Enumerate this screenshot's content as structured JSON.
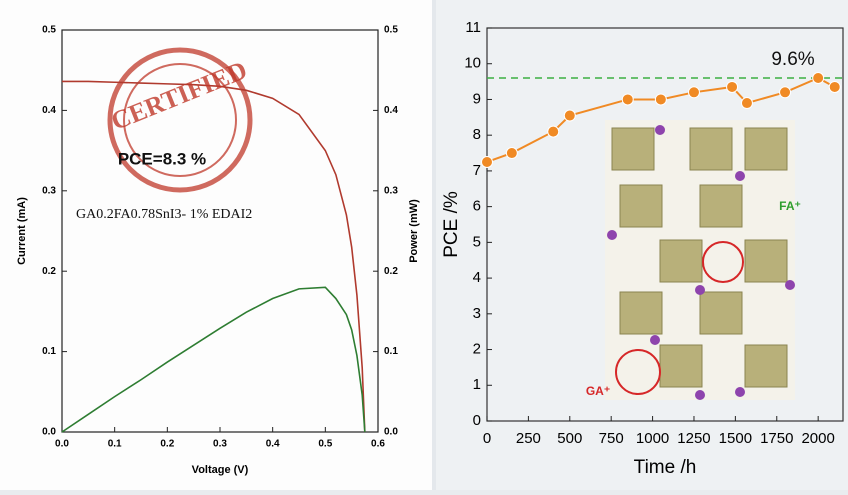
{
  "chart_data": [
    {
      "type": "line",
      "x_label": "Voltage (V)",
      "y_label": "Current (mA)",
      "y2_label": "Power (mW)",
      "annotations": [
        "CERTIFIED",
        "PCE=8.3 %",
        "GA0.2FA0.78SnI3- 1% EDAI2"
      ],
      "x": [
        0,
        0.05,
        0.1,
        0.15,
        0.2,
        0.25,
        0.3,
        0.35,
        0.4,
        0.45,
        0.5,
        0.52,
        0.54,
        0.55,
        0.56,
        0.57,
        0.575
      ],
      "series": [
        {
          "color": "#b03a2e",
          "values": [
            0.436,
            0.436,
            0.435,
            0.434,
            0.433,
            0.432,
            0.43,
            0.425,
            0.415,
            0.395,
            0.35,
            0.32,
            0.27,
            0.23,
            0.17,
            0.08,
            0
          ]
        },
        {
          "color": "#2e7d32",
          "axis": "y2",
          "values": [
            0,
            0.022,
            0.044,
            0.065,
            0.087,
            0.108,
            0.129,
            0.149,
            0.166,
            0.178,
            0.18,
            0.166,
            0.146,
            0.127,
            0.095,
            0.046,
            0
          ]
        }
      ],
      "xlim": [
        0,
        0.6
      ],
      "xticks": [
        {
          "value": 0,
          "label": "0.0"
        },
        0.1,
        0.2,
        0.3,
        0.4,
        0.5,
        0.6
      ],
      "ylim": [
        0,
        0.5
      ],
      "yticks": [
        {
          "value": 0,
          "label": "0.0"
        },
        0.1,
        0.2,
        0.3,
        0.4,
        0.5
      ],
      "y2lim": [
        0,
        0.5
      ],
      "y2ticks": [
        {
          "value": 0,
          "label": "0.0"
        },
        0.1,
        0.2,
        0.3,
        0.4,
        0.5
      ],
      "markers": false
    },
    {
      "type": "line",
      "x_label": "Time /h",
      "y_label": "PCE /%",
      "x": [
        0,
        150,
        400,
        500,
        850,
        1050,
        1250,
        1480,
        1570,
        1800,
        2000,
        2100
      ],
      "series": [
        {
          "color": "#f08a24",
          "values": [
            7.25,
            7.5,
            8.1,
            8.55,
            9.0,
            9.0,
            9.2,
            9.35,
            8.9,
            9.2,
            9.6,
            9.35
          ]
        }
      ],
      "xlim": [
        0,
        2150
      ],
      "xticks": [
        0,
        250,
        500,
        750,
        1000,
        1250,
        1500,
        1750,
        2000
      ],
      "ylim": [
        0,
        11
      ],
      "yticks": [
        0,
        1,
        2,
        3,
        4,
        5,
        6,
        7,
        8,
        9,
        10,
        11
      ],
      "reference_line": {
        "value": 9.6,
        "label": "9.6%",
        "color": "#3cb043"
      },
      "inset_labels": [
        "FA⁺",
        "GA⁺"
      ],
      "markers": true
    }
  ]
}
